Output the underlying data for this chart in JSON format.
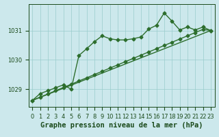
{
  "xlabel": "Graphe pression niveau de la mer (hPa)",
  "bg_color": "#cce8ec",
  "plot_bg_color": "#cce8ec",
  "grid_color": "#99cccc",
  "line_color": "#2d6e2d",
  "text_color": "#1a4a1a",
  "xlim": [
    -0.5,
    23.5
  ],
  "ylim": [
    1028.4,
    1031.9
  ],
  "yticks": [
    1029,
    1030,
    1031
  ],
  "xticks": [
    0,
    1,
    2,
    3,
    4,
    5,
    6,
    7,
    8,
    9,
    10,
    11,
    12,
    13,
    14,
    15,
    16,
    17,
    18,
    19,
    20,
    21,
    22,
    23
  ],
  "series1_x": [
    0,
    1,
    2,
    3,
    4,
    5,
    6,
    7,
    8,
    9,
    10,
    11,
    12,
    13,
    14,
    15,
    16,
    17,
    18,
    19,
    20,
    21,
    22,
    23
  ],
  "series1_y": [
    1028.62,
    1028.85,
    1028.95,
    1029.05,
    1029.15,
    1029.0,
    1030.15,
    1030.38,
    1030.62,
    1030.82,
    1030.72,
    1030.68,
    1030.68,
    1030.72,
    1030.78,
    1031.05,
    1031.18,
    1031.6,
    1031.32,
    1031.02,
    1031.12,
    1031.02,
    1031.12,
    1031.0
  ],
  "series2_x": [
    0,
    1,
    2,
    3,
    4,
    5,
    6,
    7,
    8,
    9,
    10,
    11,
    12,
    13,
    14,
    15,
    16,
    17,
    18,
    19,
    20,
    21,
    22,
    23
  ],
  "series2_y": [
    1028.62,
    1028.73,
    1028.84,
    1028.95,
    1029.06,
    1029.17,
    1029.28,
    1029.39,
    1029.5,
    1029.61,
    1029.72,
    1029.83,
    1029.94,
    1030.05,
    1030.16,
    1030.27,
    1030.38,
    1030.49,
    1030.6,
    1030.71,
    1030.82,
    1030.93,
    1031.04,
    1031.0
  ],
  "series3_x": [
    0,
    23
  ],
  "series3_y": [
    1028.62,
    1031.0
  ],
  "marker": "D",
  "marker_size": 2.5,
  "line_width": 1.0,
  "xlabel_fontsize": 7.5,
  "tick_fontsize": 6.0
}
